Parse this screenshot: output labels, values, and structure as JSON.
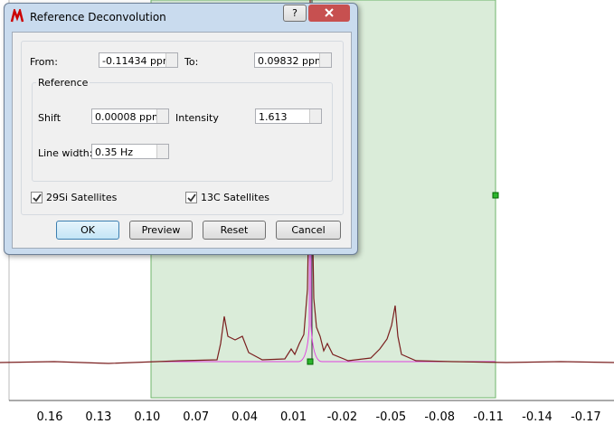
{
  "dialog": {
    "title": "Reference Deconvolution",
    "help": "?",
    "from": {
      "label": "From:",
      "value": "-0.11434 ppm"
    },
    "to": {
      "label": "To:",
      "value": "0.09832 ppm"
    },
    "reference": {
      "title": "Reference",
      "shift": {
        "label": "Shift",
        "value": "0.00008 ppm"
      },
      "intensity": {
        "label": "Intensity",
        "value": "1.613"
      },
      "line_width": {
        "label": "Line width:",
        "value": "0.35 Hz"
      }
    },
    "satellites": [
      {
        "label": "29Si Satellites",
        "checked": true
      },
      {
        "label": "13C Satellites",
        "checked": true
      }
    ],
    "buttons": [
      "OK",
      "Preview",
      "Reset",
      "Cancel"
    ]
  },
  "axis": {
    "ticks": [
      "0.16",
      "0.13",
      "0.10",
      "0.07",
      "0.04",
      "0.01",
      "-0.02",
      "-0.05",
      "-0.08",
      "-0.11",
      "-0.14",
      "-0.17"
    ]
  }
}
